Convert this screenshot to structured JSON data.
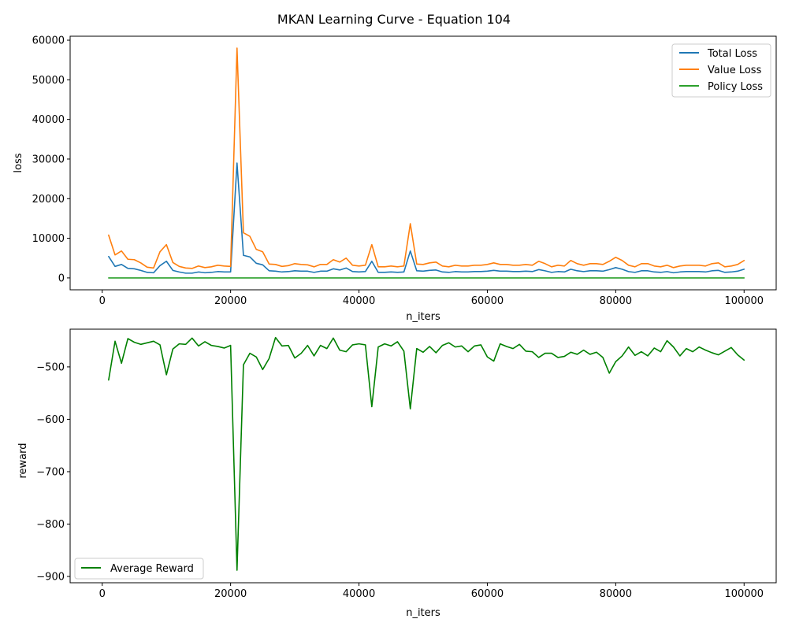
{
  "figure": {
    "suptitle": "MKAN Learning Curve - Equation 104"
  },
  "chart_data": [
    {
      "type": "line",
      "xlabel": "n_iters",
      "ylabel": "loss",
      "xlim": [
        -5000,
        105000
      ],
      "ylim": [
        -3000,
        61000
      ],
      "xticks": [
        0,
        20000,
        40000,
        60000,
        80000,
        100000
      ],
      "xtick_labels": [
        "0",
        "20000",
        "40000",
        "60000",
        "80000",
        "100000"
      ],
      "yticks": [
        0,
        10000,
        20000,
        30000,
        40000,
        50000,
        60000
      ],
      "ytick_labels": [
        "0",
        "10000",
        "20000",
        "30000",
        "40000",
        "50000",
        "60000"
      ],
      "grid": false,
      "legend_position": "upper right",
      "x": [
        1000,
        2000,
        3000,
        4000,
        5000,
        6000,
        7000,
        8000,
        9000,
        10000,
        11000,
        12000,
        13000,
        14000,
        15000,
        16000,
        17000,
        18000,
        19000,
        20000,
        21000,
        22000,
        23000,
        24000,
        25000,
        26000,
        27000,
        28000,
        29000,
        30000,
        31000,
        32000,
        33000,
        34000,
        35000,
        36000,
        37000,
        38000,
        39000,
        40000,
        41000,
        42000,
        43000,
        44000,
        45000,
        46000,
        47000,
        48000,
        49000,
        50000,
        51000,
        52000,
        53000,
        54000,
        55000,
        56000,
        57000,
        58000,
        59000,
        60000,
        61000,
        62000,
        63000,
        64000,
        65000,
        66000,
        67000,
        68000,
        69000,
        70000,
        71000,
        72000,
        73000,
        74000,
        75000,
        76000,
        77000,
        78000,
        79000,
        80000,
        81000,
        82000,
        83000,
        84000,
        85000,
        86000,
        87000,
        88000,
        89000,
        90000,
        91000,
        92000,
        93000,
        94000,
        95000,
        96000,
        97000,
        98000,
        99000,
        100000
      ],
      "series": [
        {
          "name": "Total Loss",
          "color": "#1f77b4",
          "values": [
            5400,
            2900,
            3400,
            2400,
            2300,
            1900,
            1400,
            1300,
            3100,
            4200,
            1900,
            1500,
            1200,
            1200,
            1500,
            1300,
            1400,
            1600,
            1500,
            1500,
            29000,
            5700,
            5300,
            3700,
            3300,
            1800,
            1700,
            1500,
            1600,
            1800,
            1700,
            1700,
            1400,
            1700,
            1700,
            2300,
            2000,
            2500,
            1600,
            1500,
            1600,
            4200,
            1400,
            1400,
            1500,
            1400,
            1500,
            6800,
            1800,
            1700,
            1900,
            2000,
            1500,
            1400,
            1600,
            1500,
            1500,
            1600,
            1600,
            1700,
            1900,
            1700,
            1700,
            1600,
            1600,
            1700,
            1600,
            2100,
            1800,
            1400,
            1600,
            1500,
            2200,
            1800,
            1600,
            1800,
            1800,
            1700,
            2100,
            2600,
            2200,
            1600,
            1400,
            1800,
            1800,
            1500,
            1400,
            1600,
            1300,
            1500,
            1600,
            1600,
            1600,
            1500,
            1800,
            1900,
            1400,
            1500,
            1700,
            2200
          ]
        },
        {
          "name": "Value Loss",
          "color": "#ff7f0e",
          "values": [
            10800,
            5800,
            6800,
            4700,
            4600,
            3800,
            2700,
            2500,
            6600,
            8400,
            3900,
            2900,
            2500,
            2400,
            3000,
            2600,
            2800,
            3200,
            3000,
            2900,
            58000,
            11400,
            10500,
            7200,
            6600,
            3500,
            3400,
            2900,
            3100,
            3600,
            3400,
            3300,
            2800,
            3400,
            3400,
            4600,
            4000,
            5000,
            3200,
            3000,
            3200,
            8400,
            2800,
            2800,
            3000,
            2800,
            3000,
            13700,
            3500,
            3400,
            3800,
            4000,
            3000,
            2800,
            3200,
            3000,
            3000,
            3200,
            3200,
            3400,
            3800,
            3400,
            3400,
            3200,
            3200,
            3400,
            3200,
            4200,
            3600,
            2800,
            3200,
            3000,
            4400,
            3600,
            3200,
            3600,
            3600,
            3400,
            4200,
            5200,
            4400,
            3200,
            2800,
            3600,
            3600,
            3000,
            2800,
            3200,
            2600,
            3000,
            3200,
            3200,
            3200,
            3000,
            3600,
            3800,
            2800,
            3000,
            3400,
            4400
          ]
        },
        {
          "name": "Policy Loss",
          "color": "#2ca02c",
          "values": [
            0,
            0,
            0,
            0,
            0,
            0,
            0,
            0,
            0,
            0,
            0,
            0,
            0,
            0,
            0,
            0,
            0,
            0,
            0,
            0,
            0,
            0,
            0,
            0,
            0,
            0,
            0,
            0,
            0,
            0,
            0,
            0,
            0,
            0,
            0,
            0,
            0,
            0,
            0,
            0,
            0,
            0,
            0,
            0,
            0,
            0,
            0,
            0,
            0,
            0,
            0,
            0,
            0,
            0,
            0,
            0,
            0,
            0,
            0,
            0,
            0,
            0,
            0,
            0,
            0,
            0,
            0,
            0,
            0,
            0,
            0,
            0,
            0,
            0,
            0,
            0,
            0,
            0,
            0,
            0,
            0,
            0,
            0,
            0,
            0,
            0,
            0,
            0,
            0,
            0,
            0,
            0,
            0,
            0,
            0,
            0,
            0,
            0,
            0,
            0
          ]
        }
      ]
    },
    {
      "type": "line",
      "xlabel": "n_iters",
      "ylabel": "reward",
      "xlim": [
        -5000,
        105000
      ],
      "ylim": [
        -912,
        -428
      ],
      "xticks": [
        0,
        20000,
        40000,
        60000,
        80000,
        100000
      ],
      "xtick_labels": [
        "0",
        "20000",
        "40000",
        "60000",
        "80000",
        "100000"
      ],
      "yticks": [
        -500,
        -600,
        -700,
        -800,
        -900
      ],
      "ytick_labels": [
        "−500",
        "−600",
        "−700",
        "−800",
        "−900"
      ],
      "grid": false,
      "legend_position": "lower left",
      "x": [
        1000,
        2000,
        3000,
        4000,
        5000,
        6000,
        7000,
        8000,
        9000,
        10000,
        11000,
        12000,
        13000,
        14000,
        15000,
        16000,
        17000,
        18000,
        19000,
        20000,
        21000,
        22000,
        23000,
        24000,
        25000,
        26000,
        27000,
        28000,
        29000,
        30000,
        31000,
        32000,
        33000,
        34000,
        35000,
        36000,
        37000,
        38000,
        39000,
        40000,
        41000,
        42000,
        43000,
        44000,
        45000,
        46000,
        47000,
        48000,
        49000,
        50000,
        51000,
        52000,
        53000,
        54000,
        55000,
        56000,
        57000,
        58000,
        59000,
        60000,
        61000,
        62000,
        63000,
        64000,
        65000,
        66000,
        67000,
        68000,
        69000,
        70000,
        71000,
        72000,
        73000,
        74000,
        75000,
        76000,
        77000,
        78000,
        79000,
        80000,
        81000,
        82000,
        83000,
        84000,
        85000,
        86000,
        87000,
        88000,
        89000,
        90000,
        91000,
        92000,
        93000,
        94000,
        95000,
        96000,
        97000,
        98000,
        99000,
        100000
      ],
      "series": [
        {
          "name": "Average Reward",
          "color": "#008000",
          "values": [
            -525,
            -451,
            -493,
            -446,
            -453,
            -457,
            -454,
            -451,
            -458,
            -515,
            -466,
            -456,
            -457,
            -445,
            -460,
            -452,
            -459,
            -461,
            -464,
            -459,
            -888,
            -496,
            -474,
            -481,
            -505,
            -484,
            -444,
            -460,
            -459,
            -483,
            -474,
            -459,
            -479,
            -459,
            -465,
            -445,
            -468,
            -471,
            -458,
            -456,
            -458,
            -576,
            -462,
            -456,
            -460,
            -452,
            -470,
            -580,
            -465,
            -472,
            -461,
            -473,
            -459,
            -454,
            -462,
            -460,
            -471,
            -460,
            -458,
            -481,
            -489,
            -456,
            -461,
            -465,
            -457,
            -470,
            -471,
            -482,
            -474,
            -474,
            -482,
            -480,
            -472,
            -476,
            -468,
            -476,
            -472,
            -482,
            -512,
            -490,
            -479,
            -462,
            -478,
            -471,
            -479,
            -464,
            -471,
            -450,
            -462,
            -479,
            -465,
            -471,
            -462,
            -468,
            -473,
            -477,
            -470,
            -463,
            -477,
            -487
          ]
        }
      ]
    }
  ]
}
